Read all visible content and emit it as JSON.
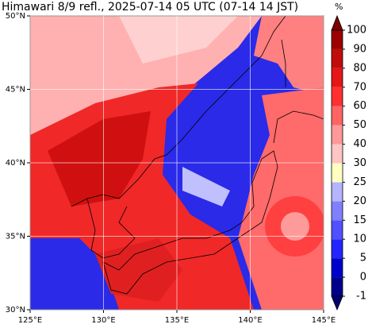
{
  "title": "Himawari 8/9 refl., 2025-07-14 05 UTC (07-14 14 JST)",
  "map": {
    "lonlim": [
      125,
      145
    ],
    "latlim": [
      30,
      50
    ],
    "lon_ticks": [
      {
        "value": 125,
        "label": "125°E"
      },
      {
        "value": 130,
        "label": "130°E"
      },
      {
        "value": 135,
        "label": "135°E"
      },
      {
        "value": 140,
        "label": "140°E"
      },
      {
        "value": 145,
        "label": "145°E"
      }
    ],
    "lat_ticks": [
      {
        "value": 30,
        "label": "30°N"
      },
      {
        "value": 35,
        "label": "35°N"
      },
      {
        "value": 40,
        "label": "40°N"
      },
      {
        "value": 45,
        "label": "45°N"
      },
      {
        "value": 50,
        "label": "50°N"
      }
    ]
  },
  "colorbar": {
    "unit": "%",
    "levels": [
      -1,
      0,
      5,
      10,
      15,
      20,
      25,
      30,
      40,
      50,
      60,
      70,
      80,
      90,
      100
    ],
    "colors": [
      "#00008b",
      "#0000cd",
      "#2424ff",
      "#5050ff",
      "#8080ff",
      "#b4b4ff",
      "#ffffc0",
      "#ffc4c4",
      "#ff9898",
      "#ff6464",
      "#ff3030",
      "#e41616",
      "#c00c0c",
      "#9c0000"
    ],
    "under_color": "#000070",
    "over_color": "#800000"
  }
}
